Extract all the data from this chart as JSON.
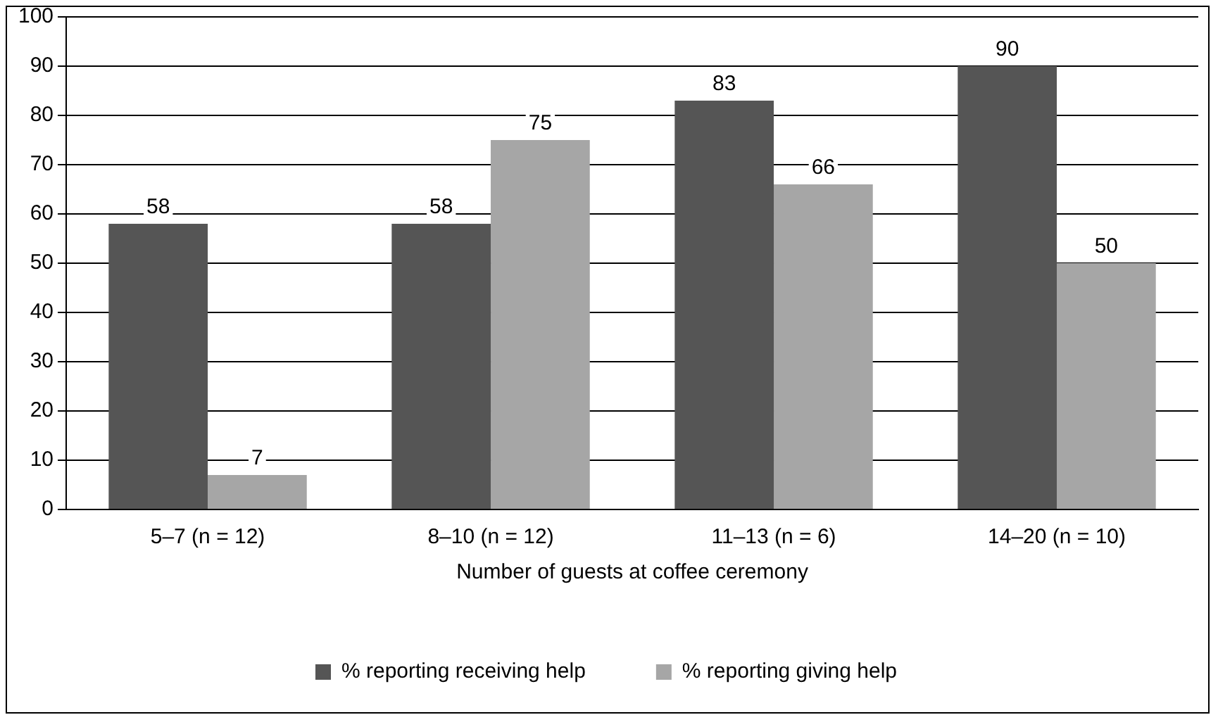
{
  "chart_data": {
    "type": "bar",
    "xlabel": "Number of guests at coffee ceremony",
    "categories": [
      "5–7 (n = 12)",
      "8–10 (n = 12)",
      "11–13 (n = 6)",
      "14–20 (n = 10)"
    ],
    "series": [
      {
        "name": "% reporting receiving help",
        "color": "#555555",
        "values": [
          58,
          58,
          83,
          90
        ]
      },
      {
        "name": "% reporting giving help",
        "color": "#a6a6a6",
        "values": [
          7,
          75,
          66,
          50
        ]
      }
    ],
    "ylim": [
      0,
      100
    ],
    "yticks": [
      0,
      10,
      20,
      30,
      40,
      50,
      60,
      70,
      80,
      90,
      100
    ],
    "grid": "y",
    "legend": "bottom",
    "data_labels": true
  }
}
